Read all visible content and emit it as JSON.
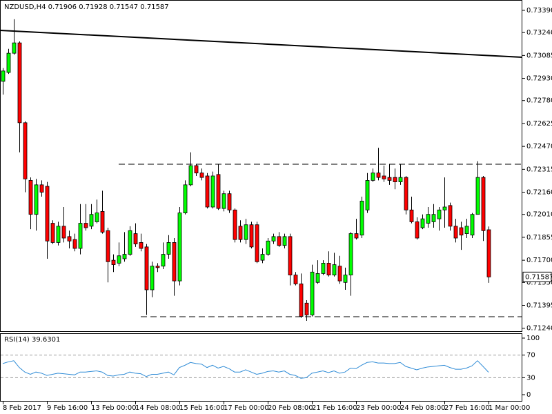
{
  "chart_data": [
    {
      "type": "candlestick",
      "title": "NZDUSD,H4",
      "categories": [
        "8 Feb 2017",
        null,
        null,
        null,
        null,
        null,
        null,
        null,
        "9 Feb 16:00",
        null,
        null,
        null,
        null,
        null,
        null,
        null,
        "13 Feb 00:00",
        null,
        null,
        null,
        null,
        null,
        null,
        null,
        "14 Feb 08:00",
        null,
        null,
        null,
        null,
        null,
        null,
        null,
        "15 Feb 16:00",
        null,
        null,
        null,
        null,
        null,
        null,
        null,
        "17 Feb 00:00",
        null,
        null,
        null,
        null,
        null,
        null,
        null,
        "20 Feb 08:00",
        null,
        null,
        null,
        null,
        null,
        null,
        null,
        "21 Feb 16:00",
        null,
        null,
        null,
        null,
        null,
        null,
        null,
        "23 Feb 00:00",
        null,
        null,
        null,
        null,
        null,
        null,
        null,
        "24 Feb 08:00",
        null,
        null,
        null,
        null,
        null,
        null,
        null,
        "27 Feb 16:00",
        null,
        null,
        null,
        null,
        null,
        null,
        null,
        "1 Mar 00:00"
      ],
      "open": [
        0.7291,
        0.7297,
        0.731,
        0.7317,
        0.7263,
        0.7224,
        0.7201,
        0.7221,
        0.722,
        0.7195,
        0.7182,
        0.7193,
        0.7186,
        0.7184,
        0.7178,
        0.7195,
        0.7193,
        0.7196,
        0.7203,
        0.719,
        0.717,
        0.7168,
        0.7171,
        0.7174,
        0.7188,
        0.7182,
        0.7179,
        0.715,
        0.7166,
        0.7166,
        0.7174,
        0.7182,
        0.7156,
        0.7202,
        0.7221,
        0.7234,
        0.7229,
        0.7227,
        0.7206,
        0.7228,
        0.7205,
        0.7215,
        0.7204,
        0.7193,
        0.7184,
        0.7194,
        0.7194,
        0.717,
        0.7174,
        0.7183,
        0.7186,
        0.718,
        0.7186,
        0.716,
        0.7154,
        0.7141,
        0.7133,
        0.7155,
        0.7161,
        0.7168,
        0.716,
        0.7166,
        0.7155,
        0.716,
        0.7188,
        0.7187,
        0.7204,
        0.7224,
        0.7229,
        0.7227,
        0.7226,
        0.7226,
        0.7223,
        0.7226,
        0.7204,
        0.7196,
        0.7192,
        0.7195,
        0.7196,
        0.7198,
        0.7204,
        0.7207,
        0.7193,
        0.7192,
        0.7188,
        0.7187,
        0.7201,
        0.7226,
        0.71906
      ],
      "high": [
        0.73,
        0.7313,
        0.7333,
        0.7318,
        0.7264,
        0.7226,
        0.7225,
        0.7224,
        0.7223,
        0.7197,
        0.7196,
        0.7206,
        0.719,
        0.7188,
        0.7208,
        0.7208,
        0.7208,
        0.7211,
        0.7217,
        0.7192,
        0.7174,
        0.7182,
        0.7189,
        0.7193,
        0.7195,
        0.7188,
        0.7181,
        0.7169,
        0.7168,
        0.7182,
        0.7187,
        0.7185,
        0.7206,
        0.7224,
        0.7243,
        0.7235,
        0.7232,
        0.7229,
        0.723,
        0.7235,
        0.7217,
        0.7217,
        0.7205,
        0.7197,
        0.7198,
        0.7196,
        0.7196,
        0.7178,
        0.7185,
        0.7188,
        0.7189,
        0.7188,
        0.7188,
        0.7162,
        0.7161,
        0.7143,
        0.7167,
        0.717,
        0.717,
        0.7176,
        0.7175,
        0.7173,
        0.7165,
        0.7189,
        0.7198,
        0.7213,
        0.7229,
        0.7232,
        0.7246,
        0.7234,
        0.7235,
        0.7232,
        0.7235,
        0.7227,
        0.7213,
        0.7199,
        0.7201,
        0.7206,
        0.7208,
        0.7206,
        0.7226,
        0.7209,
        0.7198,
        0.7196,
        0.7198,
        0.7202,
        0.7237,
        0.7227,
        0.71928
      ],
      "low": [
        0.7282,
        0.7296,
        0.7309,
        0.7243,
        0.7216,
        0.7191,
        0.719,
        0.7213,
        0.7171,
        0.7181,
        0.718,
        0.7182,
        0.7178,
        0.7176,
        0.7174,
        0.719,
        0.7191,
        0.7195,
        0.7188,
        0.7155,
        0.7162,
        0.7166,
        0.7169,
        0.7173,
        0.7179,
        0.7176,
        0.7133,
        0.7145,
        0.7162,
        0.7164,
        0.7171,
        0.7146,
        0.7153,
        0.7201,
        0.722,
        0.7227,
        0.7224,
        0.7205,
        0.7205,
        0.7204,
        0.7203,
        0.7202,
        0.7182,
        0.7182,
        0.7181,
        0.7178,
        0.7168,
        0.7168,
        0.7173,
        0.7181,
        0.7179,
        0.7178,
        0.7153,
        0.7153,
        0.7131,
        0.7129,
        0.7132,
        0.7154,
        0.716,
        0.7159,
        0.7159,
        0.7154,
        0.715,
        0.7146,
        0.7184,
        0.7185,
        0.7202,
        0.7223,
        0.7224,
        0.7223,
        0.7221,
        0.7218,
        0.7221,
        0.7201,
        0.7195,
        0.7184,
        0.7191,
        0.7192,
        0.7192,
        0.719,
        0.7192,
        0.719,
        0.7182,
        0.7177,
        0.7185,
        0.7185,
        0.7201,
        0.7183,
        0.71547
      ],
      "close": [
        0.7298,
        0.731,
        0.7317,
        0.7263,
        0.7225,
        0.7201,
        0.7221,
        0.7216,
        0.7183,
        0.7182,
        0.7193,
        0.7185,
        0.7183,
        0.7178,
        0.7195,
        0.7192,
        0.7201,
        0.7202,
        0.7189,
        0.7169,
        0.7167,
        0.7173,
        0.7174,
        0.719,
        0.7181,
        0.7178,
        0.715,
        0.7166,
        0.7165,
        0.7174,
        0.7182,
        0.7156,
        0.7202,
        0.7221,
        0.7234,
        0.7229,
        0.7226,
        0.7206,
        0.7227,
        0.7205,
        0.7215,
        0.7204,
        0.7184,
        0.7184,
        0.7194,
        0.7179,
        0.7169,
        0.7174,
        0.7183,
        0.7186,
        0.718,
        0.7186,
        0.716,
        0.7154,
        0.7132,
        0.7133,
        0.7162,
        0.7161,
        0.7168,
        0.716,
        0.7167,
        0.7156,
        0.716,
        0.7188,
        0.7185,
        0.721,
        0.7224,
        0.7229,
        0.7226,
        0.7225,
        0.7224,
        0.7223,
        0.7226,
        0.7204,
        0.7196,
        0.7185,
        0.7198,
        0.7201,
        0.7201,
        0.7204,
        0.7206,
        0.7193,
        0.7185,
        0.7187,
        0.7193,
        0.7201,
        0.7226,
        0.719,
        0.71587
      ],
      "up_color": "#00ff00",
      "down_color": "#ff0000",
      "ylim": [
        0.7122,
        0.7346
      ],
      "yticks": [
        {
          "value": 0.7339,
          "label": "0.73390"
        },
        {
          "value": 0.7324,
          "label": "0.73240"
        },
        {
          "value": 0.73085,
          "label": "0.73085"
        },
        {
          "value": 0.7293,
          "label": "0.72930"
        },
        {
          "value": 0.7278,
          "label": "0.72780"
        },
        {
          "value": 0.72625,
          "label": "0.72625"
        },
        {
          "value": 0.7247,
          "label": "0.72470"
        },
        {
          "value": 0.72315,
          "label": "0.72315"
        },
        {
          "value": 0.7216,
          "label": "0.72160"
        },
        {
          "value": 0.7201,
          "label": "0.72010"
        },
        {
          "value": 0.71855,
          "label": "0.71855"
        },
        {
          "value": 0.717,
          "label": "0.71700"
        },
        {
          "value": 0.7155,
          "label": "0.71550"
        },
        {
          "value": 0.71395,
          "label": "0.71395"
        },
        {
          "value": 0.7124,
          "label": "0.71240"
        }
      ]
    },
    {
      "type": "line",
      "title": "RSI(14)",
      "color": "#2e8bd6",
      "values": [
        55,
        58,
        60,
        48,
        40,
        36,
        40,
        38,
        34,
        36,
        38,
        37,
        36,
        35,
        40,
        40,
        41,
        42,
        40,
        34,
        33,
        35,
        36,
        40,
        38,
        37,
        32,
        36,
        36,
        38,
        40,
        35,
        48,
        52,
        57,
        55,
        54,
        48,
        52,
        47,
        50,
        46,
        40,
        40,
        44,
        40,
        36,
        38,
        41,
        42,
        40,
        42,
        36,
        34,
        29,
        30,
        38,
        40,
        42,
        39,
        42,
        38,
        40,
        47,
        46,
        52,
        57,
        58,
        56,
        56,
        55,
        55,
        57,
        50,
        47,
        44,
        47,
        49,
        50,
        51,
        52,
        48,
        45,
        45,
        47,
        51,
        60,
        50,
        39.6301
      ],
      "ylim": [
        0,
        100
      ],
      "yticks": [
        100,
        70,
        30,
        0
      ],
      "levels": [
        70,
        30
      ]
    }
  ]
}
